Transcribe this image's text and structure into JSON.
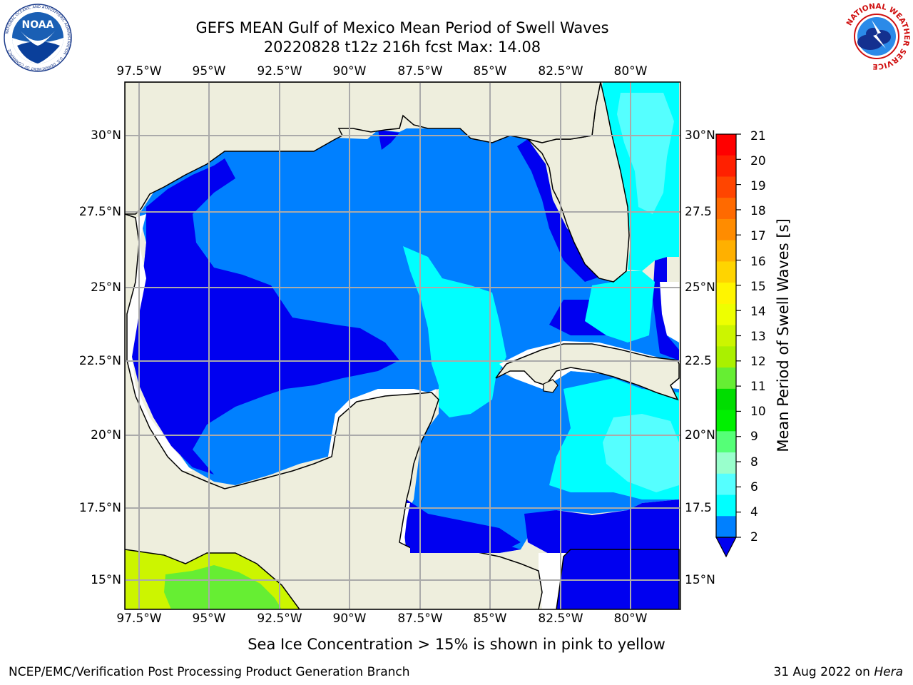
{
  "header": {
    "title_line1": "GEFS MEAN Gulf of Mexico Mean Period of Swell Waves",
    "title_line2": "20220828 t12z 216h fcst   Max: 14.08"
  },
  "logos": {
    "noaa_text": "NOAA",
    "noaa_ring_text": "NATIONAL OCEANIC AND ATMOSPHERIC ADMINISTRATION · U.S. DEPARTMENT OF COMMERCE",
    "nws_ring_text": "NATIONAL WEATHER SERVICE"
  },
  "map": {
    "lon_ticks": [
      "97.5°W",
      "95°W",
      "92.5°W",
      "90°W",
      "87.5°W",
      "85°W",
      "82.5°W",
      "80°W"
    ],
    "lat_ticks_left": [
      "30°N",
      "27.5°N",
      "25°N",
      "22.5°N",
      "20°N",
      "17.5°N",
      "15°N"
    ],
    "lat_ticks_right": [
      "30°N",
      "27.5",
      "25°N",
      "22.5",
      "20°N",
      "17.5",
      "15°N"
    ],
    "extent": {
      "lon_min": -98.0,
      "lon_max": -78.2,
      "lat_min": 14.0,
      "lat_max": 31.8
    },
    "colors": {
      "land": "#EEEEDD",
      "no_data": "#FFFFFF",
      "period_2_4": "#0080FF",
      "period_under_2": "#0000F0",
      "period_4_6": "#00FFFF",
      "period_6_8": "#55FFFF",
      "ice_yellow": "#CCF500",
      "ice_green": "#66EE33"
    }
  },
  "colorbar": {
    "title": "Mean Period of Swell Waves [s]",
    "tick_labels": [
      "21",
      "20",
      "19",
      "18",
      "17",
      "16",
      "15",
      "14",
      "13",
      "12",
      "11",
      "10",
      "9",
      "8",
      "6",
      "4",
      "2"
    ],
    "colors_top_to_bottom": [
      "#FF0000",
      "#FF2000",
      "#FF4500",
      "#FF6A00",
      "#FF8C00",
      "#FFB000",
      "#FFD400",
      "#FFF500",
      "#EEFF00",
      "#CCF500",
      "#AAF000",
      "#66EE33",
      "#00DD00",
      "#00F000",
      "#55FF77",
      "#99FFCC",
      "#55FFFF",
      "#00FFFF",
      "#0080FF"
    ],
    "under_color": "#0000F0"
  },
  "footnote": "Sea Ice Concentration > 15% is shown in pink to yellow",
  "credits": {
    "left": "NCEP/EMC/Verification Post Processing Product Generation Branch",
    "right_date": "31 Aug 2022 on ",
    "right_machine": "Hera"
  }
}
